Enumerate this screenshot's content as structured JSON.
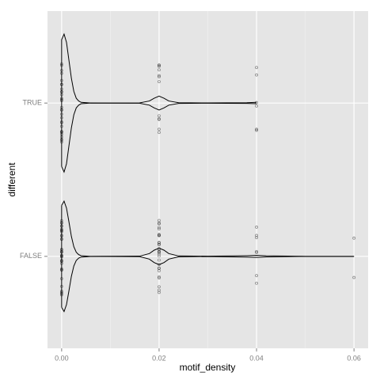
{
  "chart_data": {
    "type": "violin",
    "x_label": "motif_density",
    "y_label": "different",
    "categories": [
      "FALSE",
      "TRUE"
    ],
    "xlim": [
      -0.0029,
      0.0629
    ],
    "xticks": [
      {
        "value": 0,
        "label": "0.00"
      },
      {
        "value": 0.02,
        "label": "0.02"
      },
      {
        "value": 0.04,
        "label": "0.04"
      },
      {
        "value": 0.06,
        "label": "0.06"
      }
    ],
    "grid": true,
    "series": [
      {
        "name": "FALSE",
        "color": "#000000",
        "density_x": [
          0,
          0.0005,
          0.001,
          0.0015,
          0.002,
          0.0025,
          0.003,
          0.0035,
          0.004,
          0.006,
          0.016,
          0.018,
          0.019,
          0.02,
          0.021,
          0.022,
          0.024,
          0.03,
          0.038,
          0.04,
          0.042,
          0.05,
          0.06
        ],
        "density": [
          0.74,
          0.8,
          0.7,
          0.5,
          0.29,
          0.14,
          0.06,
          0.025,
          0.01,
          0,
          0.003,
          0.04,
          0.09,
          0.12,
          0.09,
          0.04,
          0.006,
          0.002,
          0.01,
          0.015,
          0.008,
          0,
          0
        ],
        "points": [
          0,
          0,
          0,
          0,
          0,
          0,
          0,
          0,
          0,
          0,
          0,
          0,
          0,
          0,
          0,
          0,
          0,
          0,
          0,
          0,
          0,
          0,
          0,
          0,
          0,
          0,
          0,
          0,
          0,
          0,
          0,
          0,
          0,
          0,
          0,
          0.02,
          0.02,
          0.02,
          0.02,
          0.02,
          0.02,
          0.02,
          0.02,
          0.02,
          0.02,
          0.02,
          0.02,
          0.02,
          0.02,
          0.02,
          0.02,
          0.02,
          0.02,
          0.02,
          0.02,
          0.02,
          0.02,
          0.02,
          0.02,
          0.02,
          0.02,
          0.02,
          0.02,
          0.02,
          0.02,
          0.04,
          0.04,
          0.04,
          0.04,
          0.04,
          0.04,
          0.04,
          0.06,
          0.06
        ]
      },
      {
        "name": "TRUE",
        "color": "#000000",
        "density_x": [
          0,
          0.0005,
          0.001,
          0.0015,
          0.002,
          0.0025,
          0.003,
          0.0035,
          0.004,
          0.006,
          0.016,
          0.018,
          0.019,
          0.02,
          0.021,
          0.022,
          0.024,
          0.03,
          0.038,
          0.04
        ],
        "density": [
          0.92,
          1,
          0.88,
          0.62,
          0.36,
          0.17,
          0.07,
          0.03,
          0.01,
          0,
          0.002,
          0.03,
          0.07,
          0.1,
          0.07,
          0.03,
          0.005,
          0.002,
          0.005,
          0.01
        ],
        "points": [
          0,
          0,
          0,
          0,
          0,
          0,
          0,
          0,
          0,
          0,
          0,
          0,
          0,
          0,
          0,
          0,
          0,
          0,
          0,
          0,
          0,
          0,
          0,
          0,
          0,
          0,
          0,
          0,
          0,
          0,
          0.02,
          0.02,
          0.02,
          0.02,
          0.02,
          0.02,
          0.02,
          0.02,
          0.02,
          0.02,
          0.02,
          0.02,
          0.04,
          0.04,
          0.04,
          0.04,
          0.04,
          0.04
        ]
      }
    ]
  }
}
